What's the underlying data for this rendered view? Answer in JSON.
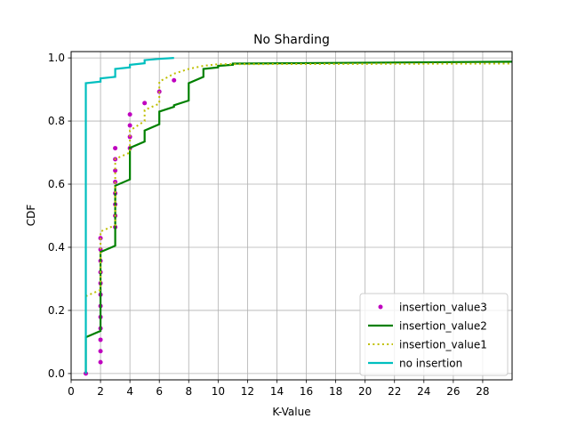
{
  "chart_data": {
    "type": "line",
    "title": "No Sharding",
    "xlabel": "K-Value",
    "ylabel": "CDF",
    "xlim": [
      0,
      30
    ],
    "ylim": [
      -0.02,
      1.02
    ],
    "xticks": [
      "0",
      "2",
      "4",
      "6",
      "8",
      "10",
      "12",
      "14",
      "16",
      "18",
      "20",
      "22",
      "24",
      "26",
      "28"
    ],
    "yticks": [
      "0.0",
      "0.2",
      "0.4",
      "0.6",
      "0.8",
      "1.0"
    ],
    "grid": true,
    "legend_position": "lower-right",
    "series": [
      {
        "name": "insertion_value3",
        "style": "dots",
        "color": "#bf00bf",
        "x": [
          1,
          2,
          2,
          2,
          2,
          2,
          2,
          2,
          2,
          2,
          2,
          2,
          2,
          3,
          3,
          3,
          3,
          3,
          3,
          3,
          3,
          4,
          4,
          4,
          4,
          5,
          6,
          7
        ],
        "y": [
          0.0,
          0.036,
          0.071,
          0.107,
          0.143,
          0.179,
          0.214,
          0.25,
          0.286,
          0.321,
          0.357,
          0.393,
          0.429,
          0.464,
          0.5,
          0.536,
          0.571,
          0.607,
          0.643,
          0.679,
          0.714,
          0.714,
          0.75,
          0.786,
          0.821,
          0.857,
          0.893,
          0.929
        ]
      },
      {
        "name": "insertion_value2",
        "style": "solid",
        "color": "#008000",
        "x": [
          1,
          1,
          2,
          2,
          3,
          3,
          4,
          4,
          5,
          5,
          6,
          6,
          7,
          7,
          8,
          8,
          9,
          9,
          10,
          10,
          11,
          11,
          30
        ],
        "y": [
          0.0,
          0.115,
          0.135,
          0.385,
          0.405,
          0.595,
          0.615,
          0.715,
          0.735,
          0.77,
          0.79,
          0.83,
          0.845,
          0.85,
          0.865,
          0.92,
          0.94,
          0.965,
          0.97,
          0.975,
          0.978,
          0.982,
          0.988
        ]
      },
      {
        "name": "insertion_value1",
        "style": "dotted",
        "color": "#bfbf00",
        "x": [
          1,
          2,
          2,
          3,
          3,
          4,
          4,
          5,
          5,
          6,
          6,
          7,
          8,
          9,
          10,
          30
        ],
        "y": [
          0.245,
          0.265,
          0.45,
          0.47,
          0.68,
          0.7,
          0.77,
          0.8,
          0.835,
          0.855,
          0.925,
          0.95,
          0.965,
          0.975,
          0.98,
          0.982
        ]
      },
      {
        "name": "no insertion",
        "style": "solid",
        "color": "#00bfbf",
        "x": [
          1,
          1,
          2,
          2,
          3,
          3,
          4,
          4,
          5,
          5,
          6,
          7
        ],
        "y": [
          0.0,
          0.92,
          0.925,
          0.935,
          0.94,
          0.965,
          0.97,
          0.978,
          0.983,
          0.993,
          0.997,
          1.0
        ]
      }
    ]
  }
}
